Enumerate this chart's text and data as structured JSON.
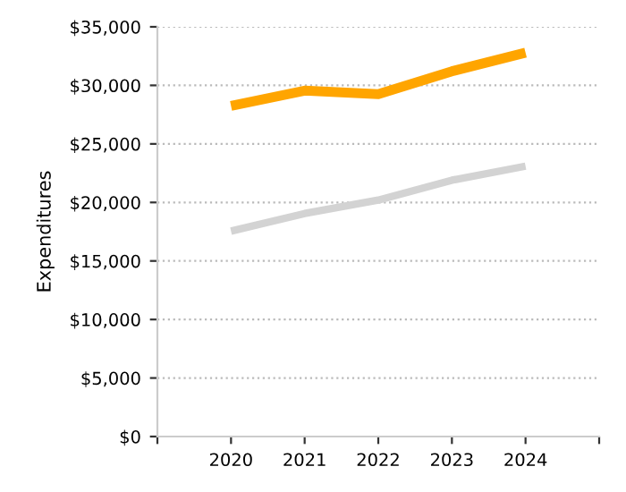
{
  "chart_data": {
    "type": "line",
    "ylabel": "Expenditures",
    "x": [
      2020,
      2021,
      2022,
      2023,
      2024
    ],
    "series": [
      {
        "color": "#ffa500",
        "values": [
          28250,
          29550,
          29250,
          31200,
          32800
        ]
      },
      {
        "color": "#d3d3d3",
        "values": [
          17550,
          19050,
          20200,
          21900,
          23100
        ]
      }
    ],
    "xlim": [
      2019,
      2025
    ],
    "xticks": [
      {
        "value": 2019,
        "label": null
      },
      2020,
      2021,
      2022,
      2023,
      2024,
      {
        "value": 2025,
        "label": null
      }
    ],
    "ylim": [
      0,
      35000
    ],
    "yticks": [
      {
        "value": 0,
        "label": "$0"
      },
      {
        "value": 5000,
        "label": "$5,000"
      },
      {
        "value": 10000,
        "label": "$10,000"
      },
      {
        "value": 15000,
        "label": "$15,000"
      },
      {
        "value": 20000,
        "label": "$20,000"
      },
      {
        "value": 25000,
        "label": "$25,000"
      },
      {
        "value": 30000,
        "label": "$30,000"
      },
      {
        "value": 35000,
        "label": "$35,000"
      }
    ],
    "grid": "y",
    "marker": "none",
    "line_style": "solid",
    "legend": false
  }
}
